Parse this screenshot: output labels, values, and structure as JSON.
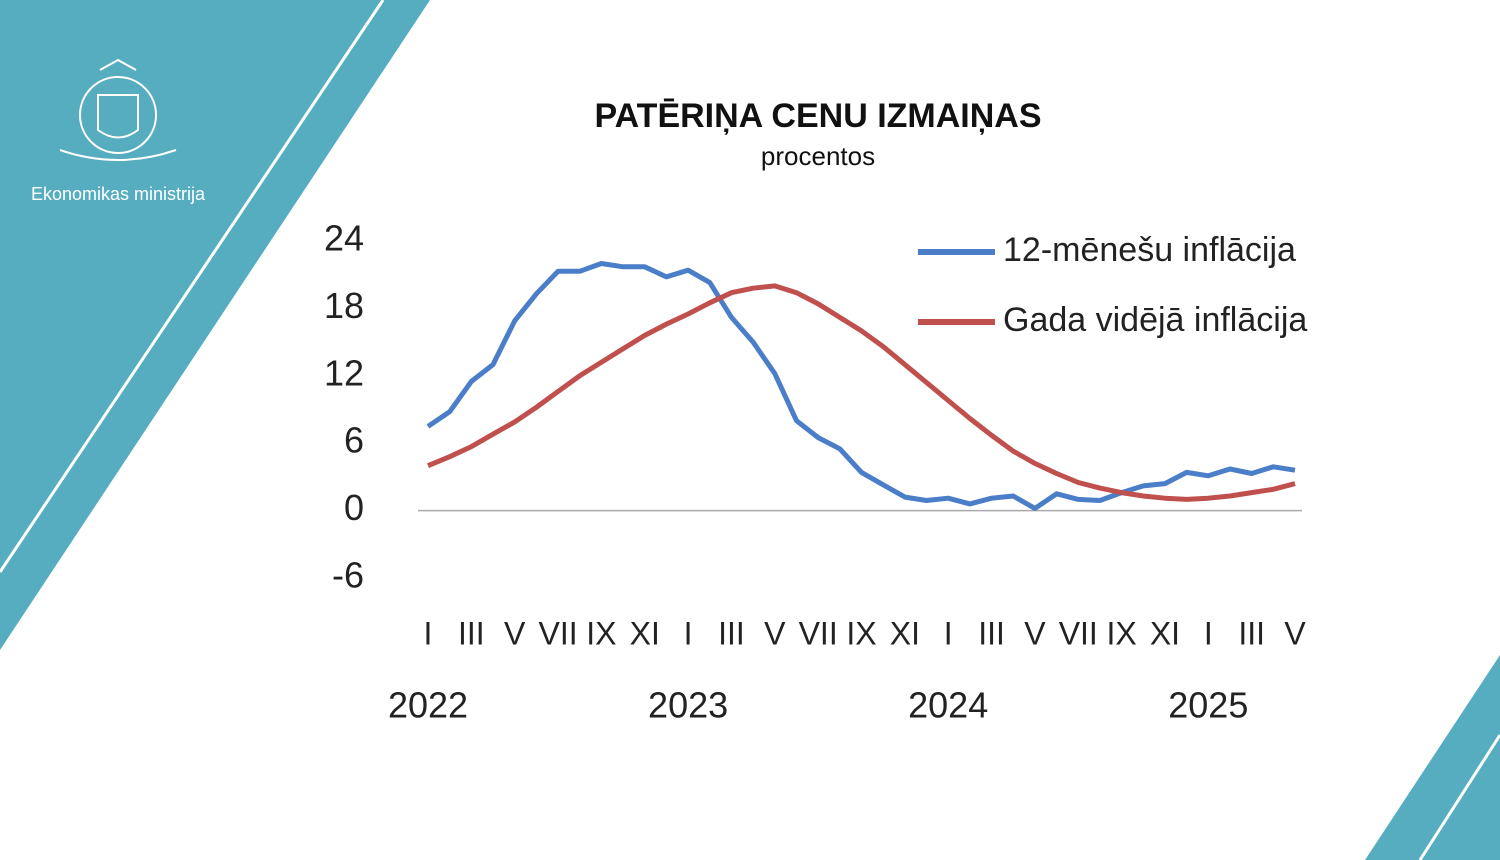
{
  "branding": {
    "org": "Ekonomikas ministrija"
  },
  "chart_data": {
    "type": "line",
    "title": "PATĒRIŅA CENU IZMAIŅAS",
    "subtitle": "procentos",
    "categories": [
      "I",
      null,
      "III",
      null,
      "V",
      null,
      "VII",
      null,
      "IX",
      null,
      "XI",
      null,
      "I",
      null,
      "III",
      null,
      "V",
      null,
      "VII",
      null,
      "IX",
      null,
      "XI",
      null,
      "I",
      null,
      "III",
      null,
      "V",
      null,
      "VII",
      null,
      "IX",
      null,
      "XI",
      null,
      "I",
      null,
      "III",
      null,
      "V"
    ],
    "year_labels": [
      "2022",
      "2023",
      "2024",
      "2025"
    ],
    "series": [
      {
        "name": "12-mēnešu inflācija",
        "color": "#4a7ec8",
        "values": [
          7.5,
          8.8,
          11.5,
          13.0,
          16.9,
          19.3,
          21.3,
          21.3,
          22.0,
          21.7,
          21.7,
          20.8,
          21.4,
          20.3,
          17.2,
          15.0,
          12.2,
          8.0,
          6.5,
          5.5,
          3.4,
          2.3,
          1.2,
          0.9,
          1.1,
          0.6,
          1.1,
          1.3,
          0.2,
          1.5,
          1.0,
          0.9,
          1.6,
          2.2,
          2.4,
          3.4,
          3.1,
          3.7,
          3.3,
          3.9,
          3.6
        ]
      },
      {
        "name": "Gada vidējā inflācija",
        "color": "#c0504d",
        "values": [
          4.0,
          4.8,
          5.7,
          6.8,
          7.9,
          9.2,
          10.6,
          12.0,
          13.2,
          14.4,
          15.6,
          16.6,
          17.5,
          18.5,
          19.4,
          19.8,
          20.0,
          19.4,
          18.4,
          17.2,
          16.0,
          14.6,
          13.0,
          11.4,
          9.8,
          8.2,
          6.7,
          5.3,
          4.2,
          3.3,
          2.5,
          2.0,
          1.6,
          1.3,
          1.1,
          1.0,
          1.1,
          1.3,
          1.6,
          1.9,
          2.4
        ]
      }
    ],
    "ylim": [
      -6,
      24
    ],
    "yticks": [
      -6,
      0,
      6,
      12,
      18,
      24
    ],
    "zero_line": true,
    "grid": false,
    "legend": "top-right"
  }
}
